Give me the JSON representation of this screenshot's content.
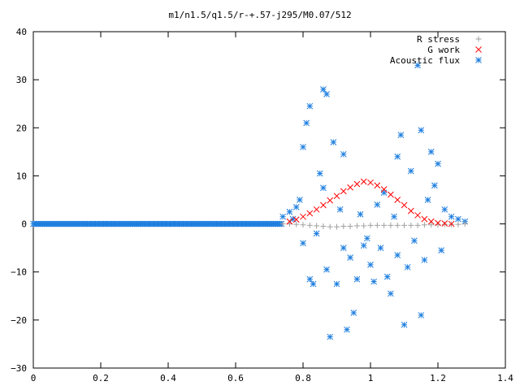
{
  "chart_data": {
    "type": "scatter",
    "title": "m1/n1.5/q1.5/r-+.57-j295/M0.07/512",
    "xlabel": "",
    "ylabel": "",
    "xlim": [
      0,
      1.4
    ],
    "ylim": [
      -30,
      40
    ],
    "xticks": [
      0,
      0.2,
      0.4,
      0.6,
      0.8,
      1,
      1.2,
      1.4
    ],
    "yticks": [
      -30,
      -20,
      -10,
      0,
      10,
      20,
      30,
      40
    ],
    "xtick_labels": [
      "0",
      "0.2",
      "0.4",
      "0.6",
      "0.8",
      "1",
      "1.2",
      "1.4"
    ],
    "ytick_labels": [
      "−30",
      "−20",
      "−10",
      "0",
      "10",
      "20",
      "30",
      "40"
    ],
    "grid": false,
    "legend_position": "top-right",
    "series": [
      {
        "name": "R stress",
        "marker": "plus",
        "color": "#a0a0a0",
        "points": [
          [
            0.74,
            0
          ],
          [
            0.76,
            0
          ],
          [
            0.78,
            -0.1
          ],
          [
            0.8,
            -0.2
          ],
          [
            0.82,
            -0.3
          ],
          [
            0.84,
            -0.4
          ],
          [
            0.86,
            -0.5
          ],
          [
            0.88,
            -0.6
          ],
          [
            0.9,
            -0.6
          ],
          [
            0.92,
            -0.5
          ],
          [
            0.94,
            -0.5
          ],
          [
            0.96,
            -0.4
          ],
          [
            0.98,
            -0.4
          ],
          [
            1.0,
            -0.3
          ],
          [
            1.02,
            -0.3
          ],
          [
            1.04,
            -0.3
          ],
          [
            1.06,
            -0.3
          ],
          [
            1.08,
            -0.3
          ],
          [
            1.1,
            -0.3
          ],
          [
            1.12,
            -0.3
          ],
          [
            1.14,
            -0.3
          ],
          [
            1.16,
            -0.2
          ],
          [
            1.18,
            -0.2
          ],
          [
            1.2,
            -0.2
          ],
          [
            1.22,
            -0.1
          ],
          [
            1.24,
            -0.1
          ],
          [
            1.26,
            -0.1
          ],
          [
            1.28,
            0
          ]
        ]
      },
      {
        "name": "G work",
        "marker": "cross",
        "color": "#ff0000",
        "points": [
          [
            0.76,
            0.5
          ],
          [
            0.78,
            0.9
          ],
          [
            0.8,
            1.5
          ],
          [
            0.82,
            2.2
          ],
          [
            0.84,
            3.0
          ],
          [
            0.86,
            3.9
          ],
          [
            0.88,
            4.9
          ],
          [
            0.9,
            5.8
          ],
          [
            0.92,
            6.8
          ],
          [
            0.94,
            7.6
          ],
          [
            0.96,
            8.3
          ],
          [
            0.98,
            8.8
          ],
          [
            1.0,
            8.6
          ],
          [
            1.02,
            8.0
          ],
          [
            1.04,
            7.2
          ],
          [
            1.06,
            6.1
          ],
          [
            1.08,
            5.0
          ],
          [
            1.1,
            3.9
          ],
          [
            1.12,
            2.7
          ],
          [
            1.14,
            1.8
          ],
          [
            1.16,
            1.0
          ],
          [
            1.18,
            0.5
          ],
          [
            1.2,
            0.2
          ],
          [
            1.22,
            0.1
          ],
          [
            1.24,
            0
          ]
        ]
      },
      {
        "name": "Acoustic flux",
        "marker": "star",
        "color": "#1f7fdf",
        "points": [
          [
            0.74,
            1.5
          ],
          [
            0.76,
            2.5
          ],
          [
            0.77,
            1.0
          ],
          [
            0.78,
            3.5
          ],
          [
            0.79,
            5.0
          ],
          [
            0.8,
            -4.0
          ],
          [
            0.8,
            16.0
          ],
          [
            0.81,
            21.0
          ],
          [
            0.82,
            24.5
          ],
          [
            0.82,
            -11.5
          ],
          [
            0.83,
            -12.5
          ],
          [
            0.84,
            -2.0
          ],
          [
            0.85,
            10.5
          ],
          [
            0.86,
            28.0
          ],
          [
            0.86,
            7.5
          ],
          [
            0.87,
            27.0
          ],
          [
            0.87,
            -9.5
          ],
          [
            0.88,
            -23.5
          ],
          [
            0.89,
            17.0
          ],
          [
            0.9,
            -12.5
          ],
          [
            0.91,
            3.0
          ],
          [
            0.92,
            14.5
          ],
          [
            0.92,
            -5.0
          ],
          [
            0.93,
            -22.0
          ],
          [
            0.94,
            -7.0
          ],
          [
            0.95,
            -18.5
          ],
          [
            0.96,
            -11.5
          ],
          [
            0.97,
            2.0
          ],
          [
            0.98,
            -4.5
          ],
          [
            0.99,
            -3.0
          ],
          [
            1.0,
            -8.5
          ],
          [
            1.01,
            -12.0
          ],
          [
            1.02,
            4.0
          ],
          [
            1.03,
            -5.0
          ],
          [
            1.04,
            6.5
          ],
          [
            1.05,
            -11.0
          ],
          [
            1.06,
            -14.5
          ],
          [
            1.07,
            1.5
          ],
          [
            1.08,
            14.0
          ],
          [
            1.08,
            -6.5
          ],
          [
            1.09,
            18.5
          ],
          [
            1.1,
            -21.0
          ],
          [
            1.11,
            -9.0
          ],
          [
            1.12,
            11.0
          ],
          [
            1.13,
            -3.5
          ],
          [
            1.14,
            33.0
          ],
          [
            1.15,
            19.5
          ],
          [
            1.15,
            -19.0
          ],
          [
            1.16,
            -7.5
          ],
          [
            1.17,
            5.0
          ],
          [
            1.18,
            15.0
          ],
          [
            1.19,
            8.0
          ],
          [
            1.2,
            12.5
          ],
          [
            1.21,
            -5.5
          ],
          [
            1.22,
            3.0
          ],
          [
            1.24,
            1.5
          ],
          [
            1.26,
            1.0
          ],
          [
            1.28,
            0.5
          ]
        ]
      }
    ]
  }
}
